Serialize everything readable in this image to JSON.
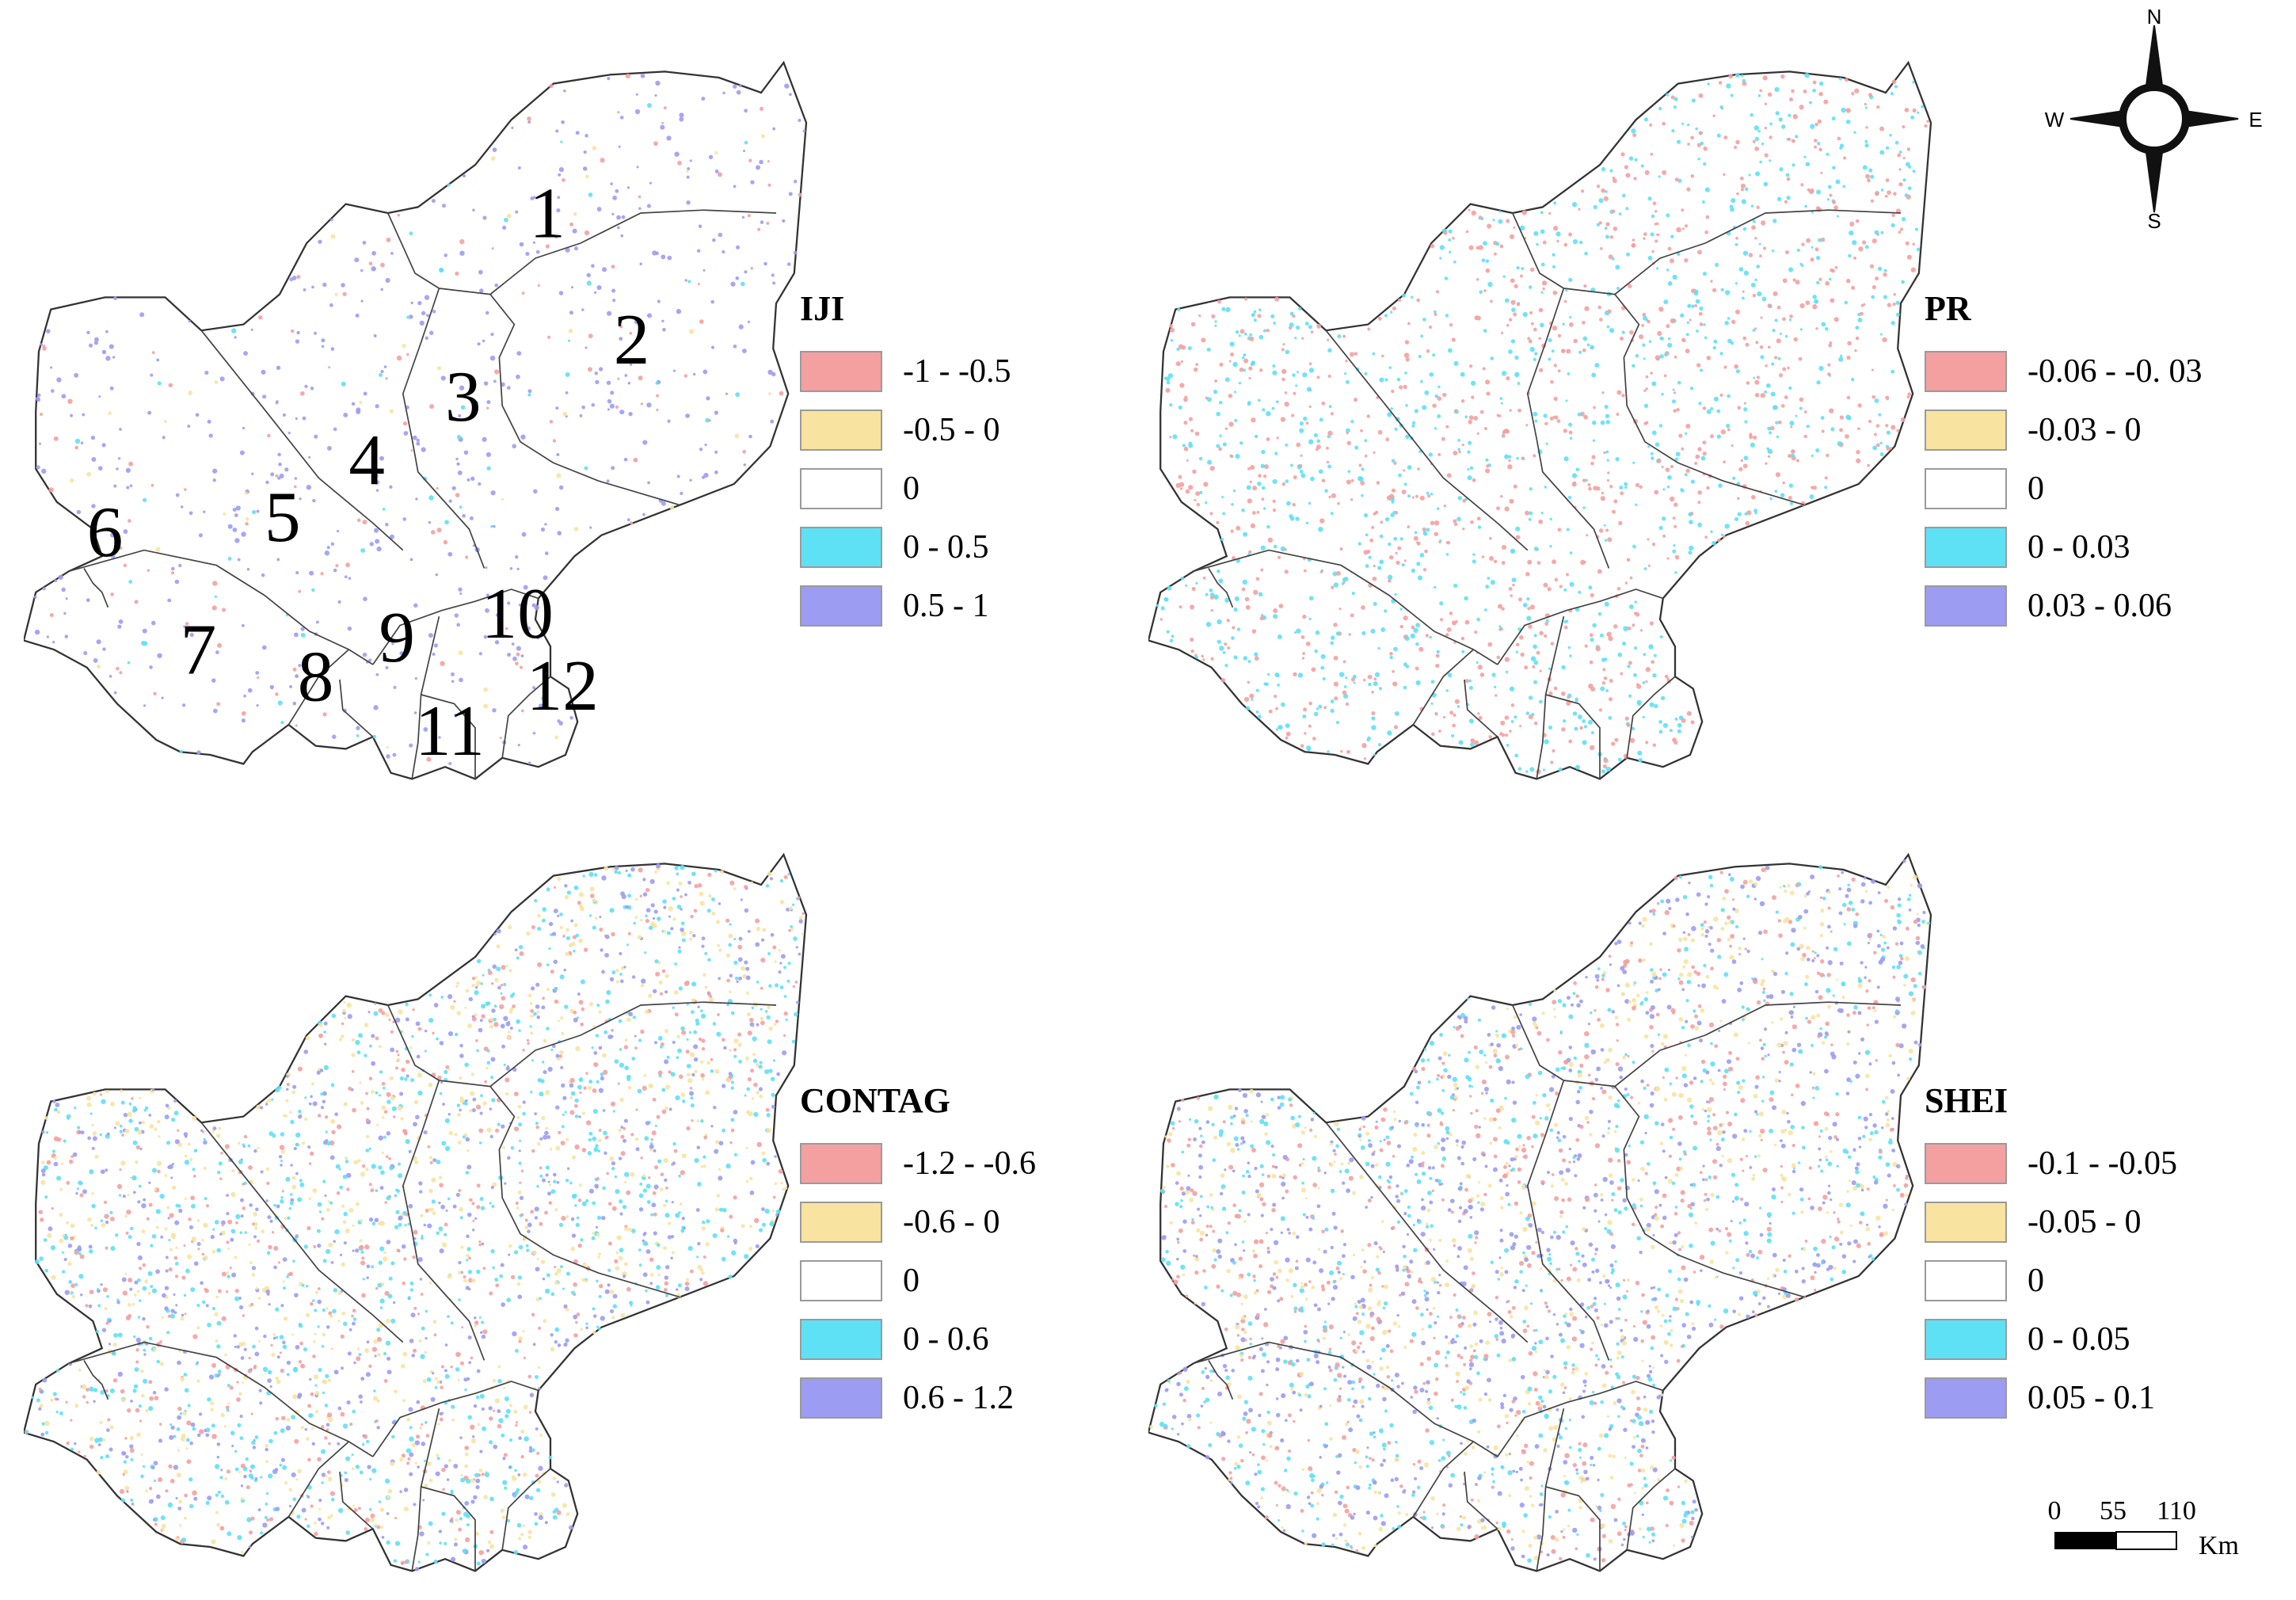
{
  "compass": {
    "n": "N",
    "s": "S",
    "e": "E",
    "w": "W"
  },
  "scale_bar": {
    "ticks": [
      "0",
      "55",
      "110"
    ],
    "unit": "Km"
  },
  "region_labels": [
    "1",
    "2",
    "3",
    "4",
    "5",
    "6",
    "7",
    "8",
    "9",
    "10",
    "11",
    "12"
  ],
  "panels": [
    {
      "id": "iji",
      "title": "IJI",
      "show_region_labels": true,
      "dot_density": 0.35,
      "dot_weights": [
        0.18,
        0.04,
        0.0,
        0.08,
        0.7
      ],
      "legend": [
        {
          "label": "-1 - -0.5",
          "color": "#f4a0a0"
        },
        {
          "label": "-0.5 - 0",
          "color": "#f8e3a0"
        },
        {
          "label": "0",
          "color": "#ffffff"
        },
        {
          "label": "0 - 0.5",
          "color": "#5ee0f5"
        },
        {
          "label": "0.5 - 1",
          "color": "#9c9cf2"
        }
      ]
    },
    {
      "id": "pr",
      "title": "PR",
      "show_region_labels": false,
      "dot_density": 0.9,
      "dot_weights": [
        0.5,
        0.0,
        0.0,
        0.5,
        0.0
      ],
      "legend": [
        {
          "label": "-0.06 - -0. 03",
          "color": "#f4a0a0"
        },
        {
          "label": "-0.03 - 0",
          "color": "#f8e3a0"
        },
        {
          "label": "0",
          "color": "#ffffff"
        },
        {
          "label": "0 - 0.03",
          "color": "#5ee0f5"
        },
        {
          "label": "0.03 - 0.06",
          "color": "#9c9cf2"
        }
      ]
    },
    {
      "id": "contag",
      "title": "CONTAG",
      "show_region_labels": false,
      "dot_density": 1.3,
      "dot_weights": [
        0.2,
        0.25,
        0.0,
        0.3,
        0.25
      ],
      "legend": [
        {
          "label": "-1.2 - -0.6",
          "color": "#f4a0a0"
        },
        {
          "label": "-0.6 - 0",
          "color": "#f8e3a0"
        },
        {
          "label": "0",
          "color": "#ffffff"
        },
        {
          "label": "0 - 0.6",
          "color": "#5ee0f5"
        },
        {
          "label": "0.6 - 1.2",
          "color": "#9c9cf2"
        }
      ]
    },
    {
      "id": "shei",
      "title": "SHEI",
      "show_region_labels": false,
      "dot_density": 1.3,
      "dot_weights": [
        0.25,
        0.2,
        0.0,
        0.25,
        0.3
      ],
      "legend": [
        {
          "label": "-0.1 - -0.05",
          "color": "#f4a0a0"
        },
        {
          "label": "-0.05 - 0",
          "color": "#f8e3a0"
        },
        {
          "label": "0",
          "color": "#ffffff"
        },
        {
          "label": "0 - 0.05",
          "color": "#5ee0f5"
        },
        {
          "label": "0.05 - 0.1",
          "color": "#9c9cf2"
        }
      ]
    }
  ]
}
